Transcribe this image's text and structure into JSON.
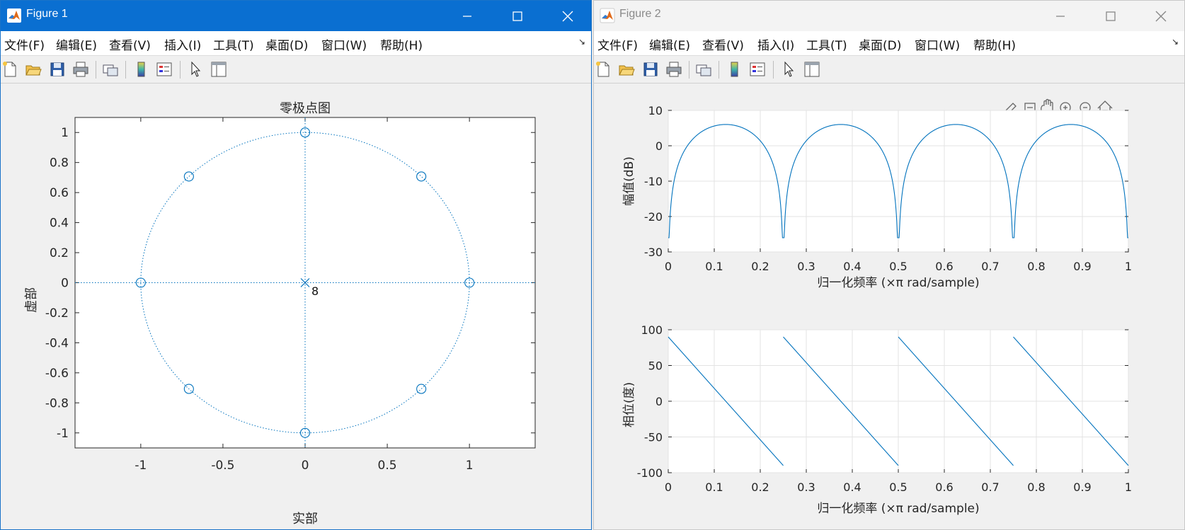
{
  "fig1": {
    "title": "Figure 1",
    "menu": [
      "文件(F)",
      "编辑(E)",
      "查看(V)",
      "插入(I)",
      "工具(T)",
      "桌面(D)",
      "窗口(W)",
      "帮助(H)"
    ],
    "plot_title": "零极点图",
    "xlabel": "实部",
    "ylabel": "虚部",
    "pole_label": "8"
  },
  "fig2": {
    "title": "Figure 2",
    "menu": [
      "文件(F)",
      "编辑(E)",
      "查看(V)",
      "插入(I)",
      "工具(T)",
      "桌面(D)",
      "窗口(W)",
      "帮助(H)"
    ],
    "mag_ylabel": "幅值(dB)",
    "phase_ylabel": "相位(度)",
    "xlabel": "归一化频率  (×π rad/sample)"
  },
  "colors": {
    "accent": "#0072BD",
    "titlebar_active": "#0a6fd1"
  },
  "chart_data": [
    {
      "type": "scatter",
      "title": "零极点图",
      "xlabel": "实部",
      "ylabel": "虚部",
      "xlim": [
        -1.4,
        1.4
      ],
      "ylim": [
        -1.1,
        1.1
      ],
      "xticks": [
        "-1",
        "-0.5",
        "0",
        "0.5",
        "1"
      ],
      "yticks": [
        "-1",
        "-0.8",
        "-0.6",
        "-0.4",
        "-0.2",
        "0",
        "0.2",
        "0.4",
        "0.6",
        "0.8",
        "1"
      ],
      "zeros": [
        [
          1,
          0
        ],
        [
          0.7071,
          0.7071
        ],
        [
          0,
          1
        ],
        [
          -0.7071,
          0.7071
        ],
        [
          -1,
          0
        ],
        [
          -0.7071,
          -0.7071
        ],
        [
          0,
          -1
        ],
        [
          0.7071,
          -0.7071
        ]
      ],
      "poles": [
        [
          0,
          0
        ]
      ],
      "pole_multiplicity": 8,
      "unit_circle": true
    },
    {
      "type": "line",
      "xlabel": "归一化频率  (×π rad/sample)",
      "ylabel": "幅值(dB)",
      "xlim": [
        0,
        1
      ],
      "ylim": [
        -30,
        10
      ],
      "xticks": [
        "0",
        "0.1",
        "0.2",
        "0.3",
        "0.4",
        "0.5",
        "0.6",
        "0.7",
        "0.8",
        "0.9",
        "1"
      ],
      "yticks": [
        "10",
        "0",
        "-10",
        "-20",
        "-30"
      ],
      "grid": true,
      "x": [
        0,
        0.01,
        0.05,
        0.125,
        0.2,
        0.24,
        0.25,
        0.26,
        0.3,
        0.375,
        0.45,
        0.49,
        0.5,
        0.51,
        0.55,
        0.625,
        0.7,
        0.74,
        0.75,
        0.76,
        0.8,
        0.875,
        0.95,
        0.99,
        1.0
      ],
      "y": [
        -26,
        -10,
        1.1,
        6.0,
        3.1,
        -8,
        -26,
        -8,
        1.1,
        6.0,
        3.1,
        -10,
        -26,
        -10,
        1.1,
        6.0,
        3.1,
        -8,
        -26,
        -8,
        1.1,
        6.0,
        3.1,
        -10,
        -26
      ]
    },
    {
      "type": "line",
      "xlabel": "归一化频率  (×π rad/sample)",
      "ylabel": "相位(度)",
      "xlim": [
        0,
        1
      ],
      "ylim": [
        -100,
        100
      ],
      "xticks": [
        "0",
        "0.1",
        "0.2",
        "0.3",
        "0.4",
        "0.5",
        "0.6",
        "0.7",
        "0.8",
        "0.9",
        "1"
      ],
      "yticks": [
        "100",
        "50",
        "0",
        "-50",
        "-100"
      ],
      "grid": true,
      "segments": [
        {
          "x": [
            0,
            0.25
          ],
          "y": [
            90,
            -90
          ]
        },
        {
          "x": [
            0.25,
            0.5
          ],
          "y": [
            90,
            -90
          ]
        },
        {
          "x": [
            0.5,
            0.75
          ],
          "y": [
            90,
            -90
          ]
        },
        {
          "x": [
            0.75,
            1.0
          ],
          "y": [
            90,
            -90
          ]
        }
      ]
    }
  ]
}
